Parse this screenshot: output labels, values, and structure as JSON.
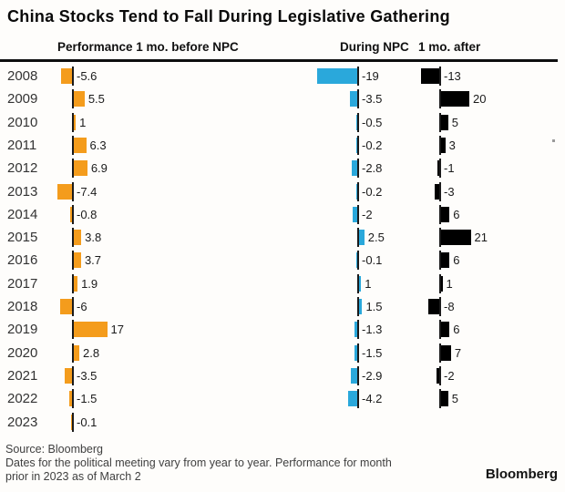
{
  "title": "China Stocks Tend to Fall During Legislative Gathering",
  "columns": [
    {
      "label": "Performance 1 mo. before NPC"
    },
    {
      "label": "During NPC"
    },
    {
      "label": "1 mo. after"
    }
  ],
  "colors": {
    "before_npc": "#F49C1C",
    "during_npc": "#2AA8DB",
    "after_npc": "#000000"
  },
  "chart_data": {
    "type": "bar",
    "orientation": "horizontal",
    "title": "China Stocks Tend to Fall During Legislative Gathering",
    "categories": [
      "2008",
      "2009",
      "2010",
      "2011",
      "2012",
      "2013",
      "2014",
      "2015",
      "2016",
      "2017",
      "2018",
      "2019",
      "2020",
      "2021",
      "2022",
      "2023"
    ],
    "series": [
      {
        "name": "Performance 1 mo. before NPC",
        "color": "#F49C1C",
        "values": [
          -5.6,
          5.5,
          1,
          6.3,
          6.9,
          -7.4,
          -0.8,
          3.8,
          3.7,
          1.9,
          -6,
          17,
          2.8,
          -3.5,
          -1.5,
          -0.1
        ]
      },
      {
        "name": "During NPC",
        "color": "#2AA8DB",
        "values": [
          -19,
          -3.5,
          -0.5,
          -0.2,
          -2.8,
          -0.2,
          -2,
          2.5,
          -0.1,
          1,
          1.5,
          -1.3,
          -1.5,
          -2.9,
          -4.2,
          null
        ]
      },
      {
        "name": "1 mo. after",
        "color": "#000000",
        "values": [
          -13,
          20,
          5,
          3,
          -1,
          -3,
          6,
          21,
          6,
          1,
          -8,
          6,
          7,
          -2,
          5,
          null
        ]
      }
    ],
    "value_labels": true,
    "grid": false,
    "legend_position": "none"
  },
  "footer": {
    "source": "Source: Bloomberg",
    "note_line1": "Dates for the political meeting vary from year to year. Performance for month",
    "note_line2": "prior in 2023 as of March 2",
    "brand": "Bloomberg"
  }
}
